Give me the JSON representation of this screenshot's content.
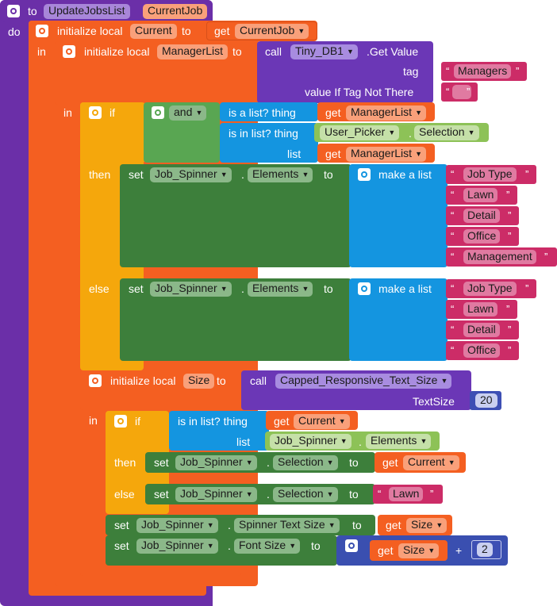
{
  "proc": {
    "to": "to",
    "name": "UpdateJobsList",
    "param": "CurrentJob",
    "do": "do"
  },
  "init1": {
    "label": "initialize local",
    "var": "Current",
    "to": "to",
    "get": "get",
    "getvar": "CurrentJob",
    "in": "in"
  },
  "init2": {
    "label": "initialize local",
    "var": "ManagerList",
    "to": "to",
    "call": "call",
    "component": "Tiny_DB1",
    "method": ".Get Value",
    "tag_label": "tag",
    "tag_value": "Managers",
    "notthere_label": "value If Tag Not There",
    "notthere_value": "",
    "in": "in"
  },
  "if1": {
    "if": "if",
    "and": "and",
    "islist": "is a list?  thing",
    "get": "get",
    "getvar": "ManagerList",
    "isinlist": "is in list? thing",
    "picker": "User_Picker",
    "selection": "Selection",
    "dot": ".",
    "list": "list",
    "getvar2": "ManagerList",
    "then": "then",
    "else": "else"
  },
  "then1": {
    "set": "set",
    "comp": "Job_Spinner",
    "prop": "Elements",
    "dot": ".",
    "to": "to",
    "makelist": "make a list",
    "items": [
      "Job Type",
      "Lawn",
      "Detail",
      "Office",
      "Management"
    ]
  },
  "else1": {
    "set": "set",
    "comp": "Job_Spinner",
    "prop": "Elements",
    "dot": ".",
    "to": "to",
    "makelist": "make a list",
    "items": [
      "Job Type",
      "Lawn",
      "Detail",
      "Office"
    ]
  },
  "init3": {
    "label": "initialize local",
    "var": "Size",
    "to": "to",
    "call": "call",
    "proc": "Capped_Responsive_Text_Size",
    "arg_label": "TextSize",
    "arg_value": "20",
    "in": "in"
  },
  "if2": {
    "if": "if",
    "isinlist": "is in list? thing",
    "get": "get",
    "getvar": "Current",
    "list": "list",
    "comp": "Job_Spinner",
    "prop": "Elements",
    "dot": ".",
    "then": "then",
    "else": "else"
  },
  "then2": {
    "set": "set",
    "comp": "Job_Spinner",
    "prop": "Selection",
    "dot": ".",
    "to": "to",
    "get": "get",
    "getvar": "Current"
  },
  "else2": {
    "set": "set",
    "comp": "Job_Spinner",
    "prop": "Selection",
    "dot": ".",
    "to": "to",
    "value": "Lawn"
  },
  "set3": {
    "set": "set",
    "comp": "Job_Spinner",
    "prop": "Spinner Text Size",
    "dot": ".",
    "to": "to",
    "get": "get",
    "getvar": "Size"
  },
  "set4": {
    "set": "set",
    "comp": "Job_Spinner",
    "prop": "Font Size",
    "dot": ".",
    "to": "to",
    "get": "get",
    "getvar": "Size",
    "op": "+",
    "num": "2"
  },
  "quote": "“",
  "quote_close": "”",
  "icons": {
    "gear": "gear-icon",
    "dropdown": "chevron-down-icon"
  }
}
